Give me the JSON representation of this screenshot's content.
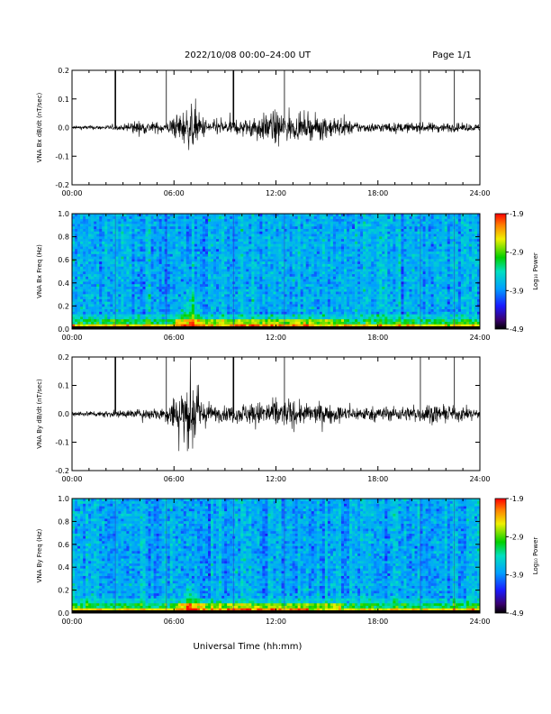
{
  "header": {
    "title": "2022/10/08  00:00–24:00 UT",
    "page": "Page 1/1"
  },
  "xaxis": {
    "ticks": [
      "00:00",
      "06:00",
      "12:00",
      "18:00",
      "24:00"
    ],
    "range_hours": [
      0,
      24
    ],
    "label": "Universal Time (hh:mm)"
  },
  "chart_data": [
    {
      "type": "line",
      "panel": "bx-waveform",
      "ylabel": "VNA Bx dB/dt (nT/sec)",
      "ylim": [
        -0.2,
        0.2
      ],
      "yticks": [
        "0.2",
        "0.1",
        "0.0",
        "-0.1",
        "-0.2"
      ],
      "ytick_values": [
        0.2,
        0.1,
        0.0,
        -0.1,
        -0.2
      ],
      "spike_times_hours": [
        2.55,
        5.55,
        9.5,
        12.5,
        20.5,
        22.5
      ],
      "envelope": {
        "x_hours": [
          0,
          3,
          3.5,
          5.5,
          6.5,
          7,
          7.5,
          8,
          9,
          10,
          11,
          12,
          12.5,
          13.5,
          14.5,
          15.5,
          17,
          18,
          19,
          20,
          21,
          22,
          23,
          24
        ],
        "amplitude": [
          0.008,
          0.01,
          0.03,
          0.02,
          0.07,
          0.09,
          0.06,
          0.03,
          0.03,
          0.03,
          0.05,
          0.07,
          0.06,
          0.04,
          0.05,
          0.04,
          0.02,
          0.02,
          0.02,
          0.02,
          0.02,
          0.02,
          0.015,
          0.015
        ]
      }
    },
    {
      "type": "heatmap",
      "panel": "bx-spectrogram",
      "ylabel": "VNA Bx Freq (Hz)",
      "ylim": [
        0.0,
        1.0
      ],
      "yticks": [
        "1.0",
        "0.8",
        "0.6",
        "0.4",
        "0.2",
        "0.0"
      ],
      "ytick_values": [
        1.0,
        0.8,
        0.6,
        0.4,
        0.2,
        0.0
      ],
      "colorbar": {
        "label": "Log₁₀ Power",
        "ticks": [
          "-1.9",
          "-2.9",
          "-3.9",
          "-4.9"
        ],
        "range": [
          -4.9,
          -1.9
        ]
      },
      "features": {
        "low_freq_band_max_hz": 0.05,
        "burst_center_hours": 7,
        "burst_top_hz": 0.45,
        "vertical_streak_hours": [
          2.55,
          5.55,
          9.5,
          12.5,
          20.5,
          22.5
        ]
      }
    },
    {
      "type": "line",
      "panel": "by-waveform",
      "ylabel": "VNA By dB/dt (nT/sec)",
      "ylim": [
        -0.2,
        0.2
      ],
      "yticks": [
        "0.2",
        "0.1",
        "0.0",
        "-0.1",
        "-0.2"
      ],
      "ytick_values": [
        0.2,
        0.1,
        0.0,
        -0.1,
        -0.2
      ],
      "spike_times_hours": [
        2.55,
        5.55,
        9.5,
        12.5,
        20.5,
        22.5
      ],
      "envelope": {
        "x_hours": [
          0,
          3,
          4,
          5.5,
          6.5,
          7,
          7.5,
          8,
          9,
          10,
          11,
          12,
          13,
          14,
          15,
          16,
          17,
          18,
          19,
          20,
          21,
          22,
          23,
          24
        ],
        "amplitude": [
          0.01,
          0.015,
          0.02,
          0.03,
          0.12,
          0.15,
          0.08,
          0.04,
          0.03,
          0.04,
          0.05,
          0.06,
          0.05,
          0.04,
          0.04,
          0.03,
          0.03,
          0.03,
          0.03,
          0.03,
          0.04,
          0.03,
          0.03,
          0.02
        ]
      }
    },
    {
      "type": "heatmap",
      "panel": "by-spectrogram",
      "ylabel": "VNA By Freq (Hz)",
      "ylim": [
        0.0,
        1.0
      ],
      "yticks": [
        "1.0",
        "0.8",
        "0.6",
        "0.4",
        "0.2",
        "0.0"
      ],
      "ytick_values": [
        1.0,
        0.8,
        0.6,
        0.4,
        0.2,
        0.0
      ],
      "colorbar": {
        "label": "Log₁₀ Power",
        "ticks": [
          "-1.9",
          "-2.9",
          "-3.9",
          "-4.9"
        ],
        "range": [
          -4.9,
          -1.9
        ]
      },
      "features": {
        "low_freq_band_max_hz": 0.05,
        "burst_center_hours": 7,
        "burst_top_hz": 0.3,
        "vertical_streak_hours": [
          2.55,
          5.55,
          9.5,
          12.5,
          20.5,
          22.5
        ]
      }
    }
  ]
}
